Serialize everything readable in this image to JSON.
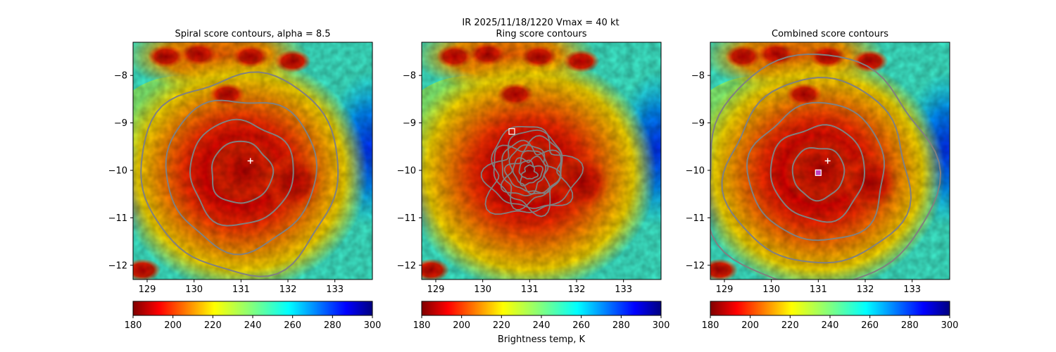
{
  "figure": {
    "suptitle_line1": "IR  2025/11/18/1220    Vmax = 40 kt",
    "colorbar_label": "Brightness temp, K"
  },
  "chart_data": [
    {
      "type": "heatmap",
      "title": "Spiral score contours, alpha =  8.5",
      "xlim": [
        128.7,
        133.8
      ],
      "ylim": [
        -12.3,
        -7.3
      ],
      "xticks": [
        129,
        130,
        131,
        132,
        133
      ],
      "yticks": [
        -8,
        -9,
        -10,
        -11,
        -12
      ],
      "xtick_labels": [
        "129",
        "130",
        "131",
        "132",
        "133"
      ],
      "ytick_labels": [
        "−8",
        "−9",
        "−10",
        "−11",
        "−12"
      ],
      "center": {
        "x": 131.0,
        "y": -10.05
      },
      "contour_radii_deg": [
        0.65,
        1.1,
        1.6,
        2.1
      ],
      "marker_plus": {
        "x": 131.2,
        "y": -9.8
      },
      "marker_square": null,
      "colorbar": {
        "min": 180,
        "max": 300,
        "ticks": [
          180,
          200,
          220,
          240,
          260,
          280,
          300
        ],
        "tick_labels": [
          "180",
          "200",
          "220",
          "240",
          "260",
          "280",
          "300"
        ]
      }
    },
    {
      "type": "heatmap",
      "title": "Ring score contours",
      "xlim": [
        128.7,
        133.8
      ],
      "ylim": [
        -12.3,
        -7.3
      ],
      "xticks": [
        129,
        130,
        131,
        132,
        133
      ],
      "yticks": [
        -8,
        -9,
        -10,
        -11,
        -12
      ],
      "xtick_labels": [
        "129",
        "130",
        "131",
        "132",
        "133"
      ],
      "ytick_labels": [
        "−8",
        "−9",
        "−10",
        "−11",
        "−12"
      ],
      "center": {
        "x": 131.0,
        "y": -10.05
      },
      "ring_region": {
        "x": 131.0,
        "y": -10.05,
        "radius_deg": 0.95
      },
      "marker_plus": null,
      "marker_square": {
        "x": 130.62,
        "y": -9.18
      },
      "colorbar": {
        "min": 180,
        "max": 300,
        "ticks": [
          180,
          200,
          220,
          240,
          260,
          280,
          300
        ],
        "tick_labels": [
          "180",
          "200",
          "220",
          "240",
          "260",
          "280",
          "300"
        ]
      }
    },
    {
      "type": "heatmap",
      "title": "Combined score contours",
      "xlim": [
        128.7,
        133.8
      ],
      "ylim": [
        -12.3,
        -7.3
      ],
      "xticks": [
        129,
        130,
        131,
        132,
        133
      ],
      "yticks": [
        -8,
        -9,
        -10,
        -11,
        -12
      ],
      "xtick_labels": [
        "129",
        "130",
        "131",
        "132",
        "133"
      ],
      "ytick_labels": [
        "−8",
        "−9",
        "−10",
        "−11",
        "−12"
      ],
      "center": {
        "x": 131.0,
        "y": -10.05
      },
      "contour_radii_deg": [
        0.55,
        1.0,
        1.45,
        1.95,
        2.45
      ],
      "marker_plus": {
        "x": 131.2,
        "y": -9.8
      },
      "marker_square": {
        "x": 131.0,
        "y": -10.05
      },
      "colorbar": {
        "min": 180,
        "max": 300,
        "ticks": [
          180,
          200,
          220,
          240,
          260,
          280,
          300
        ],
        "tick_labels": [
          "180",
          "200",
          "220",
          "240",
          "260",
          "280",
          "300"
        ]
      }
    }
  ]
}
